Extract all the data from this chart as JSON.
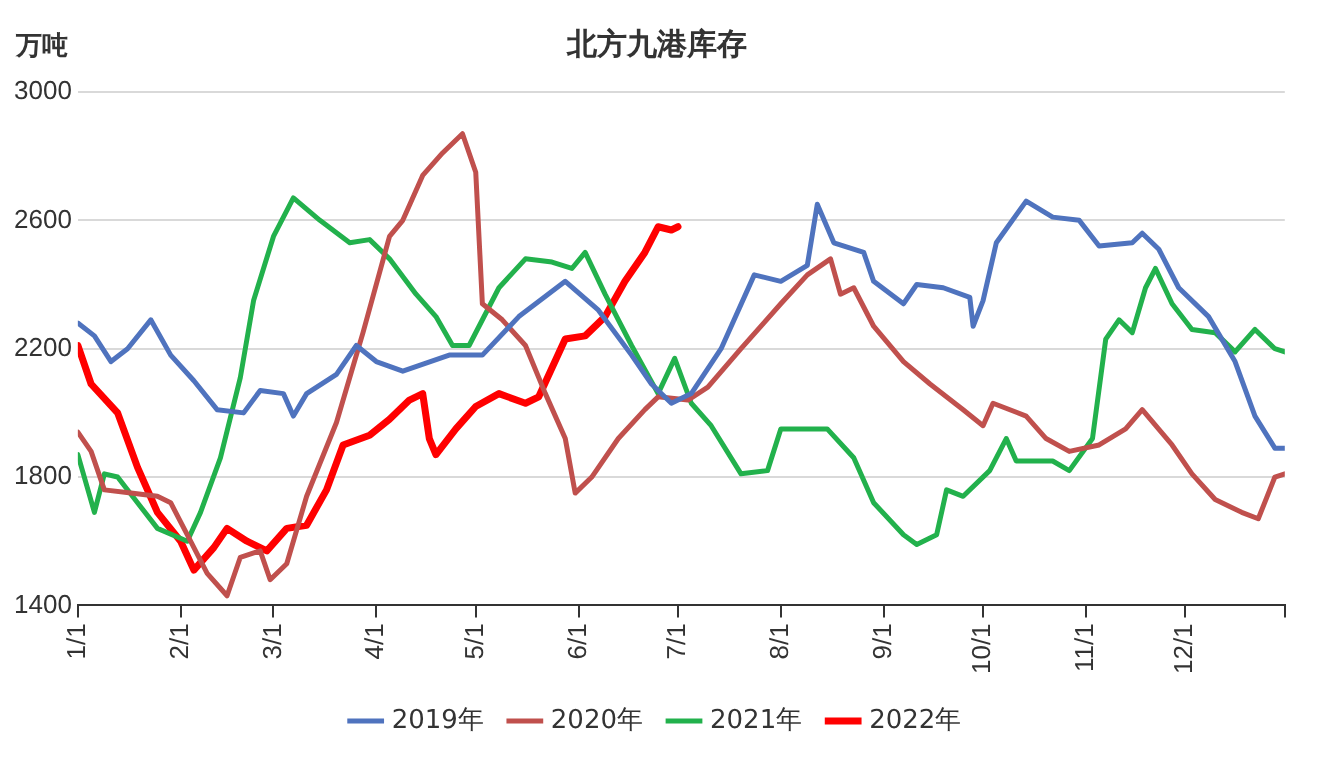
{
  "chart_data": {
    "type": "line",
    "title": "北方九港库存",
    "ylabel": "万吨",
    "xlim": [
      "--01-01",
      "--12-31"
    ],
    "xticks": [
      {
        "value": "--01-01",
        "label": "1/1"
      },
      {
        "value": "--02-01",
        "label": "2/1"
      },
      {
        "value": "--03-01",
        "label": "3/1"
      },
      {
        "value": "--04-01",
        "label": "4/1"
      },
      {
        "value": "--05-01",
        "label": "5/1"
      },
      {
        "value": "--06-01",
        "label": "6/1"
      },
      {
        "value": "--07-01",
        "label": "7/1"
      },
      {
        "value": "--08-01",
        "label": "8/1"
      },
      {
        "value": "--09-01",
        "label": "9/1"
      },
      {
        "value": "--10-01",
        "label": "10/1"
      },
      {
        "value": "--11-01",
        "label": "11/1"
      },
      {
        "value": "--12-01",
        "label": "12/1"
      },
      {
        "value": "--12-31",
        "label": null
      }
    ],
    "ylim": [
      1400,
      3000
    ],
    "yticks": [
      1400,
      1800,
      2200,
      2600,
      3000
    ],
    "grid": "y",
    "legend": "bottom",
    "marker": "none",
    "line_style": "solid",
    "series": [
      {
        "name": "2019年",
        "color": "#4f73be",
        "x": [
          "--01-01",
          "--01-06",
          "--01-11",
          "--01-16",
          "--01-23",
          "--01-29",
          "--02-05",
          "--02-12",
          "--02-20",
          "--02-25",
          "--03-04",
          "--03-07",
          "--03-11",
          "--03-20",
          "--03-26",
          "--04-01",
          "--04-09",
          "--04-23",
          "--05-03",
          "--05-14",
          "--05-28",
          "--06-07",
          "--06-17",
          "--06-23",
          "--06-29",
          "--07-05",
          "--07-14",
          "--07-24",
          "--08-01",
          "--08-09",
          "--08-12",
          "--08-17",
          "--08-26",
          "--08-29",
          "--09-07",
          "--09-11",
          "--09-19",
          "--09-27",
          "--09-28",
          "--10-01",
          "--10-05",
          "--10-14",
          "--10-22",
          "--10-30",
          "--11-05",
          "--11-15",
          "--11-18",
          "--11-23",
          "--11-29",
          "--12-08",
          "--12-16",
          "--12-22",
          "--12-28",
          "--12-31"
        ],
        "values": [
          2280,
          2240,
          2160,
          2200,
          2290,
          2180,
          2100,
          2010,
          2000,
          2070,
          2060,
          1990,
          2060,
          2120,
          2210,
          2160,
          2130,
          2180,
          2180,
          2300,
          2410,
          2320,
          2180,
          2090,
          2030,
          2060,
          2200,
          2430,
          2410,
          2460,
          2650,
          2530,
          2500,
          2410,
          2340,
          2400,
          2390,
          2360,
          2270,
          2350,
          2530,
          2660,
          2610,
          2600,
          2520,
          2530,
          2560,
          2510,
          2390,
          2300,
          2160,
          1990,
          1890,
          1890
        ]
      },
      {
        "name": "2020年",
        "color": "#c0504d",
        "x": [
          "--01-01",
          "--01-05",
          "--01-09",
          "--01-17",
          "--01-25",
          "--01-29",
          "--02-04",
          "--02-09",
          "--02-15",
          "--02-19",
          "--02-25",
          "--02-28",
          "--03-05",
          "--03-11",
          "--03-20",
          "--03-28",
          "--04-05",
          "--04-09",
          "--04-15",
          "--04-21",
          "--04-27",
          "--05-01",
          "--05-03",
          "--05-09",
          "--05-16",
          "--05-22",
          "--05-28",
          "--05-31",
          "--06-05",
          "--06-13",
          "--06-21",
          "--06-25",
          "--07-04",
          "--07-10",
          "--07-20",
          "--08-01",
          "--08-09",
          "--08-16",
          "--08-19",
          "--08-23",
          "--08-29",
          "--09-07",
          "--09-15",
          "--09-25",
          "--10-01",
          "--10-04",
          "--10-14",
          "--10-20",
          "--10-27",
          "--11-05",
          "--11-13",
          "--11-18",
          "--11-27",
          "--12-03",
          "--12-10",
          "--12-18",
          "--12-23",
          "--12-28",
          "--12-31"
        ],
        "values": [
          1940,
          1880,
          1760,
          1750,
          1740,
          1720,
          1600,
          1500,
          1430,
          1550,
          1570,
          1480,
          1530,
          1740,
          1970,
          2250,
          2550,
          2600,
          2740,
          2810,
          2870,
          2750,
          2340,
          2290,
          2210,
          2060,
          1920,
          1750,
          1800,
          1920,
          2010,
          2050,
          2040,
          2080,
          2200,
          2340,
          2430,
          2480,
          2370,
          2390,
          2270,
          2160,
          2090,
          2010,
          1960,
          2030,
          1990,
          1920,
          1880,
          1900,
          1950,
          2010,
          1900,
          1810,
          1730,
          1690,
          1670,
          1800,
          1810
        ]
      },
      {
        "name": "2021年",
        "color": "#22b14c",
        "x": [
          "--01-01",
          "--01-06",
          "--01-09",
          "--01-13",
          "--01-19",
          "--01-25",
          "--02-03",
          "--02-07",
          "--02-13",
          "--02-19",
          "--02-23",
          "--03-01",
          "--03-07",
          "--03-15",
          "--03-24",
          "--03-30",
          "--04-05",
          "--04-13",
          "--04-19",
          "--04-24",
          "--04-29",
          "--05-08",
          "--05-16",
          "--05-24",
          "--05-30",
          "--06-03",
          "--06-09",
          "--06-17",
          "--06-25",
          "--06-30",
          "--07-05",
          "--07-11",
          "--07-20",
          "--07-28",
          "--08-01",
          "--08-15",
          "--08-23",
          "--08-29",
          "--09-07",
          "--09-11",
          "--09-17",
          "--09-20",
          "--09-25",
          "--10-03",
          "--10-08",
          "--10-11",
          "--10-22",
          "--10-27",
          "--11-03",
          "--11-07",
          "--11-11",
          "--11-15",
          "--11-19",
          "--11-22",
          "--11-27",
          "--12-03",
          "--12-10",
          "--12-16",
          "--12-22",
          "--12-28",
          "--12-31"
        ],
        "values": [
          1870,
          1690,
          1810,
          1800,
          1720,
          1640,
          1600,
          1690,
          1860,
          2110,
          2350,
          2550,
          2670,
          2600,
          2530,
          2540,
          2480,
          2370,
          2300,
          2210,
          2210,
          2390,
          2480,
          2470,
          2450,
          2500,
          2370,
          2210,
          2060,
          2170,
          2030,
          1960,
          1810,
          1820,
          1950,
          1950,
          1860,
          1720,
          1620,
          1590,
          1620,
          1760,
          1740,
          1820,
          1920,
          1850,
          1850,
          1820,
          1920,
          2230,
          2290,
          2250,
          2390,
          2450,
          2340,
          2260,
          2250,
          2190,
          2260,
          2200,
          2190
        ]
      },
      {
        "name": "2022年",
        "color": "#ff0000",
        "x": [
          "--01-01",
          "--01-05",
          "--01-13",
          "--01-19",
          "--01-25",
          "--02-01",
          "--02-05",
          "--02-11",
          "--02-15",
          "--02-21",
          "--02-27",
          "--03-05",
          "--03-11",
          "--03-17",
          "--03-22",
          "--03-30",
          "--04-05",
          "--04-11",
          "--04-15",
          "--04-17",
          "--04-19",
          "--04-25",
          "--05-01",
          "--05-08",
          "--05-16",
          "--05-20",
          "--05-28",
          "--06-03",
          "--06-09",
          "--06-15",
          "--06-21",
          "--06-25",
          "--06-29",
          "--07-01"
        ],
        "values": [
          2210,
          2090,
          2000,
          1830,
          1690,
          1600,
          1510,
          1580,
          1640,
          1600,
          1570,
          1640,
          1650,
          1760,
          1900,
          1930,
          1980,
          2040,
          2060,
          1920,
          1870,
          1950,
          2020,
          2060,
          2030,
          2050,
          2230,
          2240,
          2300,
          2410,
          2500,
          2580,
          2570,
          2580
        ]
      }
    ]
  }
}
